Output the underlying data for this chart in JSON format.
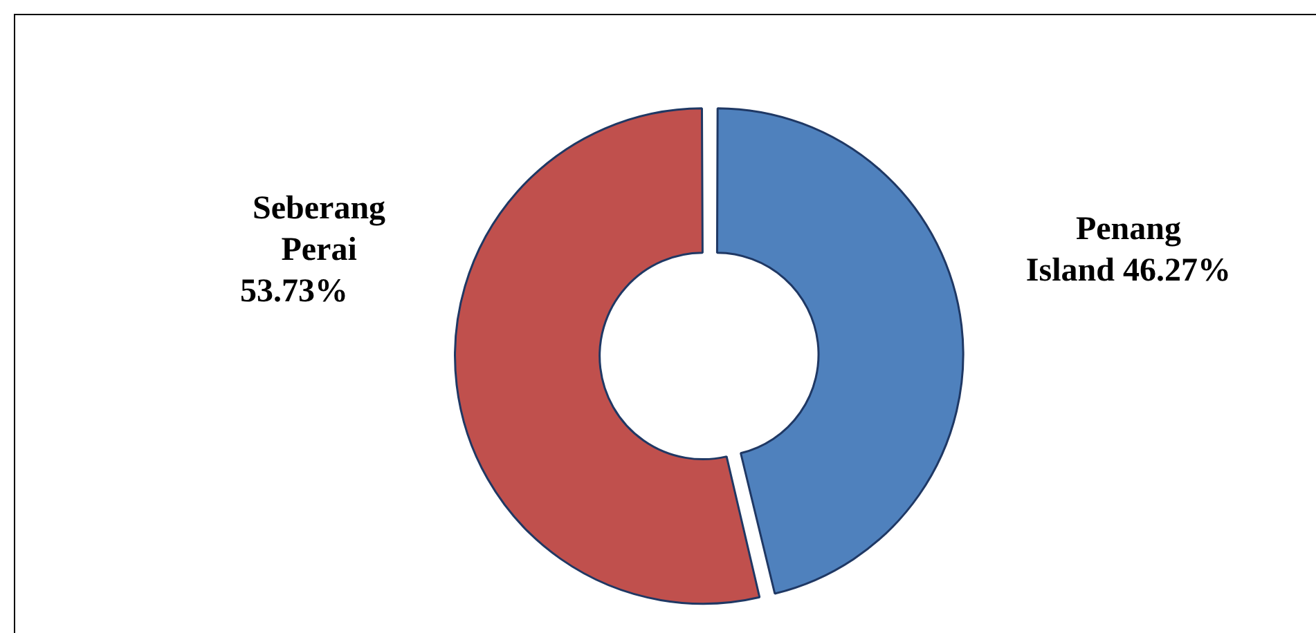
{
  "chart_data": {
    "type": "donut",
    "categories": [
      "Penang Island",
      "Seberang Perai"
    ],
    "values": [
      46.27,
      53.73
    ],
    "colors": [
      "#4f81bd",
      "#c0504d"
    ],
    "value_labels": [
      "46.27%",
      "53.73%"
    ],
    "legend": false
  }
}
